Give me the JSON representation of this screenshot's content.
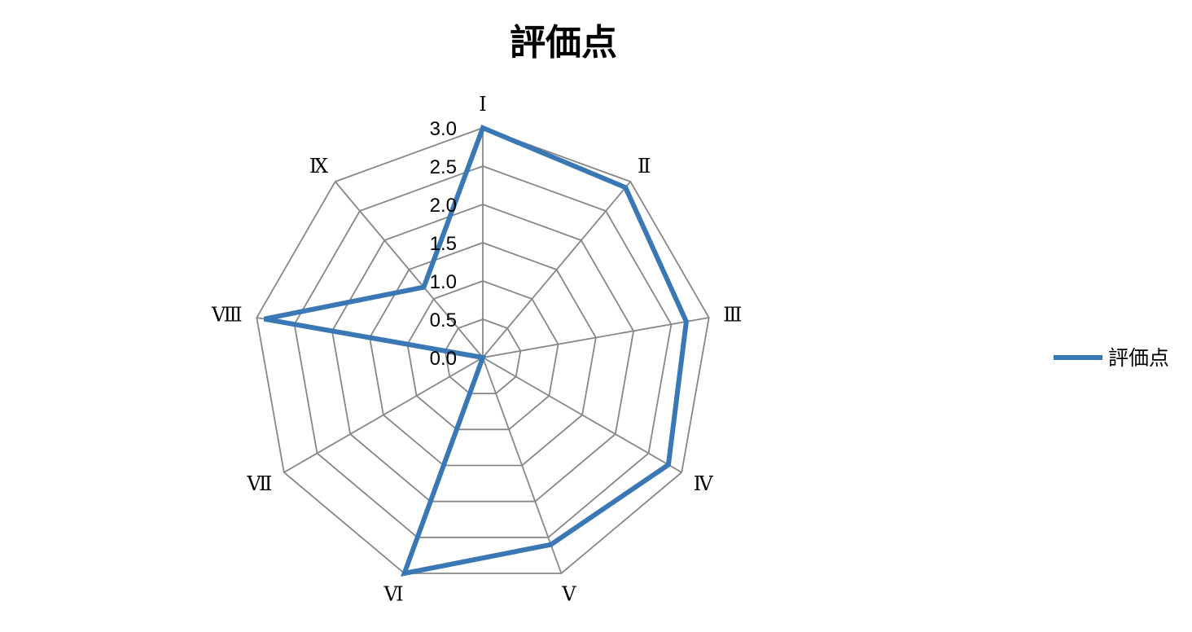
{
  "chart_data": {
    "type": "radar",
    "title": "評価点",
    "categories": [
      "Ⅰ",
      "Ⅱ",
      "Ⅲ",
      "Ⅳ",
      "Ⅴ",
      "Ⅵ",
      "Ⅶ",
      "Ⅷ",
      "Ⅸ"
    ],
    "series": [
      {
        "name": "評価点",
        "values": [
          3.0,
          2.9,
          2.7,
          2.8,
          2.6,
          3.0,
          0.0,
          2.9,
          1.2
        ]
      }
    ],
    "rlim": [
      0,
      3.0
    ],
    "ticks": [
      "0.0",
      "0.5",
      "1.0",
      "1.5",
      "2.0",
      "2.5",
      "3.0"
    ],
    "tick_values": [
      0,
      0.5,
      1.0,
      1.5,
      2.0,
      2.5,
      3.0
    ],
    "legend_position": "right",
    "colors": {
      "series": "#3a78b5",
      "grid": "#878787"
    }
  }
}
